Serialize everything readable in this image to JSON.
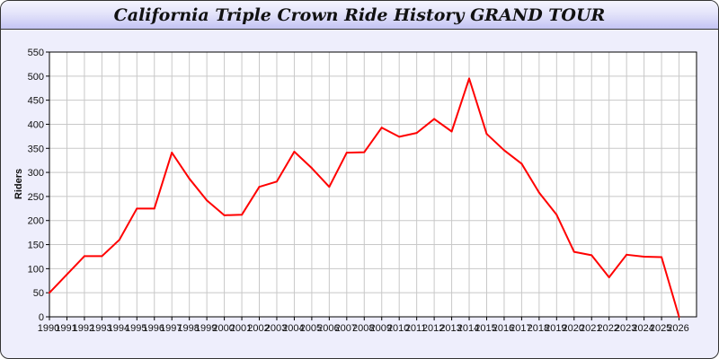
{
  "chart_data": {
    "type": "line",
    "title": "California Triple Crown Ride History GRAND TOUR",
    "xlabel": "",
    "ylabel": "Riders",
    "x": [
      1990,
      1991,
      1992,
      1993,
      1994,
      1995,
      1996,
      1997,
      1998,
      1999,
      2000,
      2001,
      2002,
      2003,
      2004,
      2005,
      2006,
      2007,
      2008,
      2009,
      2010,
      2011,
      2012,
      2013,
      2014,
      2015,
      2016,
      2017,
      2018,
      2019,
      2020,
      2021,
      2022,
      2023,
      2024,
      2025,
      2026
    ],
    "series": [
      {
        "values": [
          50,
          88,
          126,
          126,
          160,
          225,
          225,
          341,
          287,
          242,
          211,
          212,
          270,
          281,
          343,
          309,
          270,
          341,
          342,
          393,
          374,
          382,
          411,
          385,
          495,
          380,
          346,
          318,
          258,
          212,
          135,
          128,
          82,
          129,
          125,
          124,
          0
        ],
        "color": "#ff0000"
      }
    ],
    "xlim": [
      1990,
      2027
    ],
    "ylim": [
      0,
      550
    ],
    "yticks": [
      0,
      50,
      100,
      150,
      200,
      250,
      300,
      350,
      400,
      450,
      500,
      550
    ],
    "grid": true,
    "legend": "none"
  },
  "colors": {
    "background": "#eeeefc",
    "plot": "#ffffff",
    "grid": "#c8c8c8",
    "line": "#ff0000"
  }
}
